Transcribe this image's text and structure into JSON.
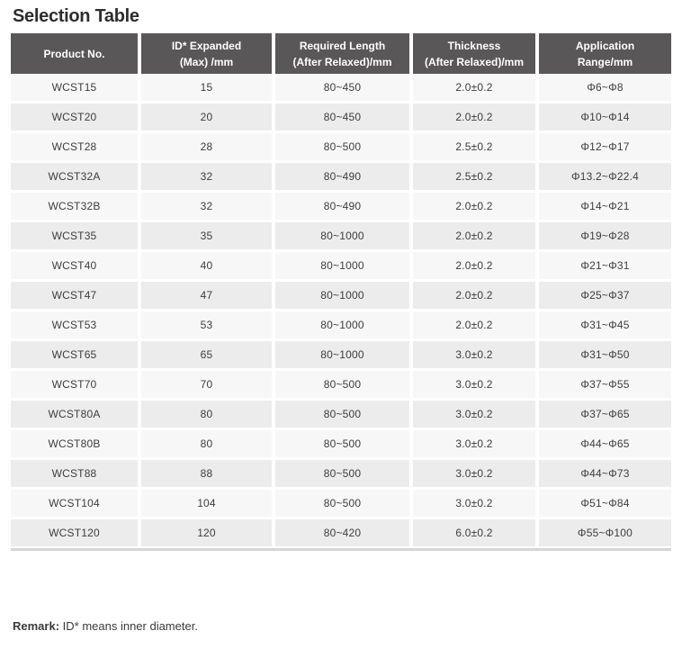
{
  "title": "Selection Table",
  "table": {
    "columns": [
      "Product No.",
      "ID* Expanded\n(Max) /mm",
      "Required Length\n(After Relaxed)/mm",
      "Thickness\n(After Relaxed)/mm",
      "Application\nRange/mm"
    ],
    "rows": [
      [
        "WCST15",
        "15",
        "80~450",
        "2.0±0.2",
        "Φ6~Φ8"
      ],
      [
        "WCST20",
        "20",
        "80~450",
        "2.0±0.2",
        "Φ10~Φ14"
      ],
      [
        "WCST28",
        "28",
        "80~500",
        "2.5±0.2",
        "Φ12~Φ17"
      ],
      [
        "WCST32A",
        "32",
        "80~490",
        "2.5±0.2",
        "Φ13.2~Φ22.4"
      ],
      [
        "WCST32B",
        "32",
        "80~490",
        "2.0±0.2",
        "Φ14~Φ21"
      ],
      [
        "WCST35",
        "35",
        "80~1000",
        "2.0±0.2",
        "Φ19~Φ28"
      ],
      [
        "WCST40",
        "40",
        "80~1000",
        "2.0±0.2",
        "Φ21~Φ31"
      ],
      [
        "WCST47",
        "47",
        "80~1000",
        "2.0±0.2",
        "Φ25~Φ37"
      ],
      [
        "WCST53",
        "53",
        "80~1000",
        "2.0±0.2",
        "Φ31~Φ45"
      ],
      [
        "WCST65",
        "65",
        "80~1000",
        "3.0±0.2",
        "Φ31~Φ50"
      ],
      [
        "WCST70",
        "70",
        "80~500",
        "3.0±0.2",
        "Φ37~Φ55"
      ],
      [
        "WCST80A",
        "80",
        "80~500",
        "3.0±0.2",
        "Φ37~Φ65"
      ],
      [
        "WCST80B",
        "80",
        "80~500",
        "3.0±0.2",
        "Φ44~Φ65"
      ],
      [
        "WCST88",
        "88",
        "80~500",
        "3.0±0.2",
        "Φ44~Φ73"
      ],
      [
        "WCST104",
        "104",
        "80~500",
        "3.0±0.2",
        "Φ51~Φ84"
      ],
      [
        "WCST120",
        "120",
        "80~420",
        "6.0±0.2",
        "Φ55~Φ100"
      ]
    ]
  },
  "remark": {
    "label": "Remark:",
    "text": " ID* means inner diameter."
  },
  "colors": {
    "header_bg": "#595757",
    "row_light": "#f7f7f7",
    "row_dark": "#ececec",
    "bottom_border": "#d6d6d6",
    "cell_text": "#3d3d3d"
  }
}
